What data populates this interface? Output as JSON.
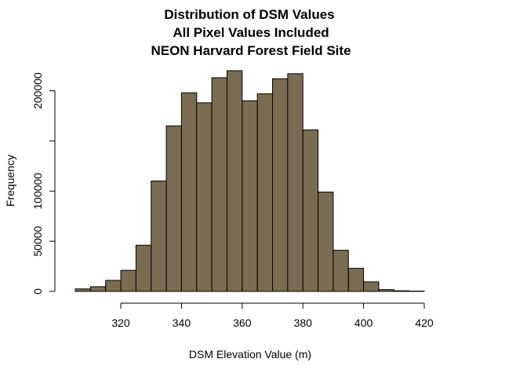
{
  "chart_data": {
    "type": "histogram",
    "title": "Distribution of DSM Values",
    "subtitle": [
      "All Pixel Values Included",
      "NEON Harvard Forest Field Site"
    ],
    "x_label": "DSM Elevation Value (m)",
    "y_label": "Frequency",
    "bins": [
      305,
      310,
      315,
      320,
      325,
      330,
      335,
      340,
      345,
      350,
      355,
      360,
      365,
      370,
      375,
      380,
      385,
      390,
      395,
      400,
      405,
      410,
      415,
      420
    ],
    "values": [
      2500,
      4700,
      11000,
      21000,
      46000,
      110000,
      165000,
      198000,
      188000,
      213000,
      220000,
      190000,
      197000,
      212000,
      217000,
      161000,
      99000,
      41000,
      23000,
      9500,
      1800,
      600,
      300
    ],
    "color": "#7a6c52",
    "xlim": [
      305,
      420
    ],
    "xticks": [
      320,
      340,
      360,
      380,
      400,
      420
    ],
    "ylim": [
      0,
      220000
    ],
    "yticks": [
      0,
      50000,
      100000,
      {
        "value": 150000,
        "label": null
      },
      200000
    ]
  }
}
